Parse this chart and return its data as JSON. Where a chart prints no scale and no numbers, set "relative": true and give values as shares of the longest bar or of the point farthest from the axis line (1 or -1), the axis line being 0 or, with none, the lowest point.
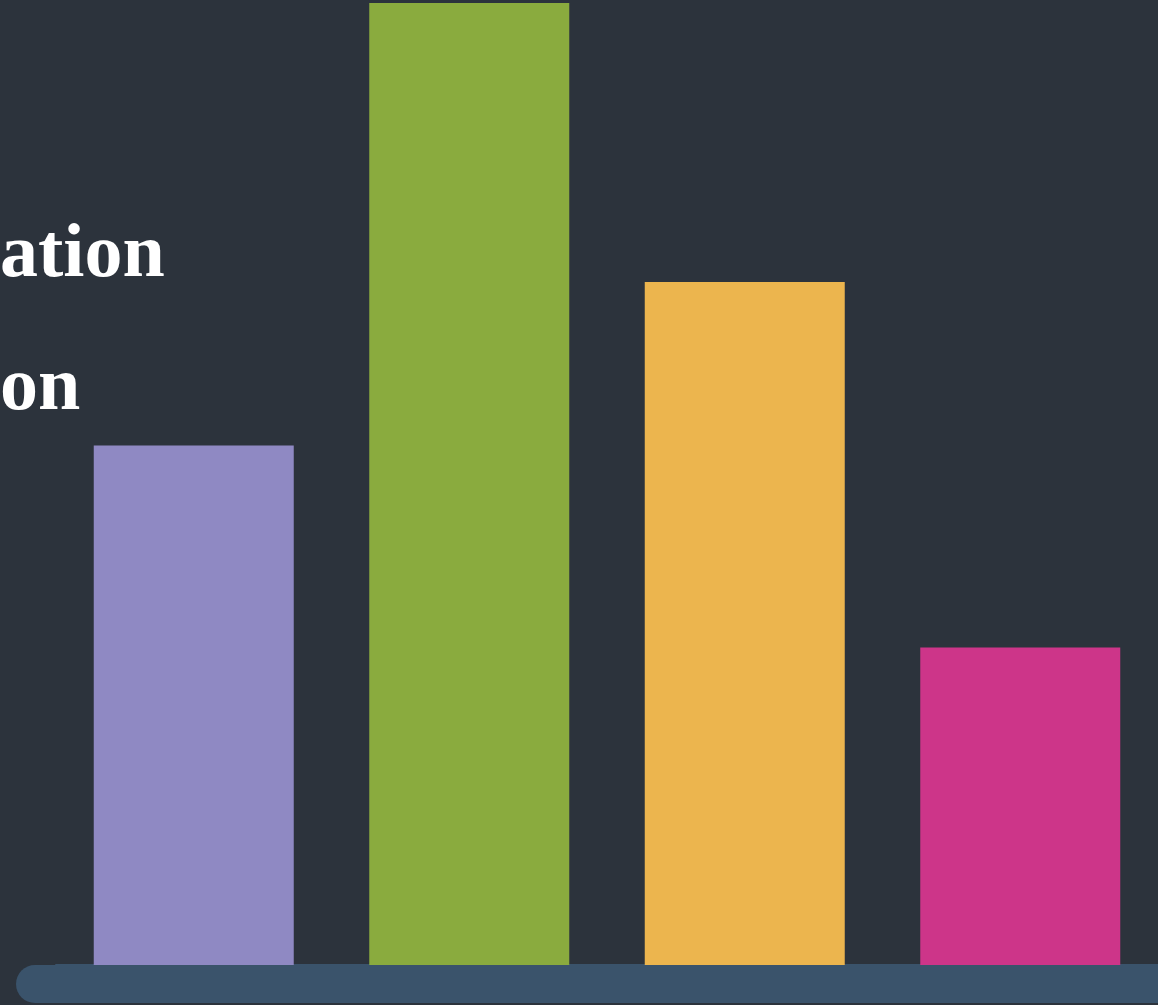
{
  "chart_data": {
    "type": "bar",
    "relative": true,
    "categories": [
      null,
      null,
      null,
      null
    ],
    "values": [
      0.54,
      1,
      0.71,
      0.33
    ],
    "colors": [
      "#8f89c3",
      "#8aab3e",
      "#ecb54e",
      "#cd3589"
    ],
    "annotations": [
      "ation",
      "on"
    ],
    "grid": false
  }
}
